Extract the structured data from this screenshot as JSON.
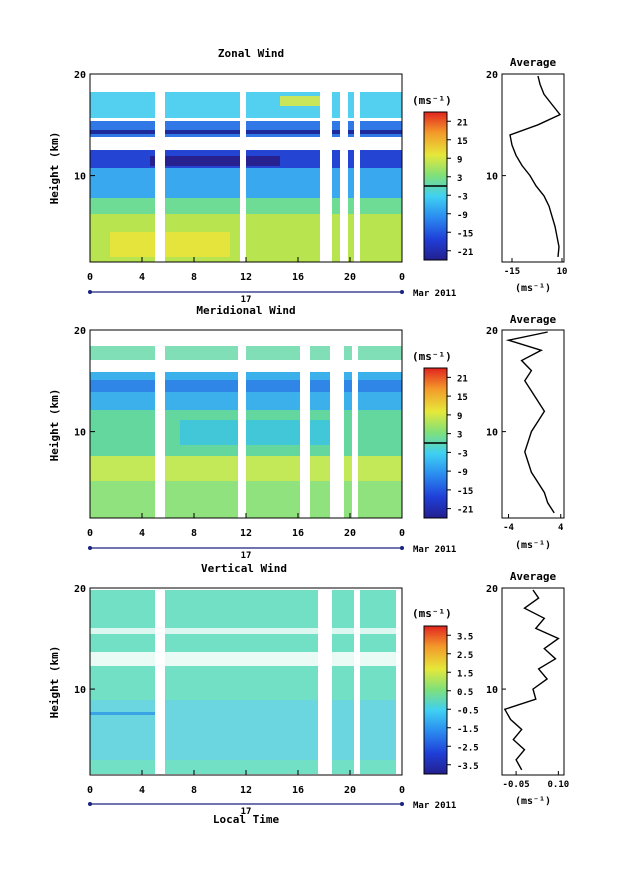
{
  "figure": {
    "xlabel": "Local Time",
    "date_label": "17",
    "month_label": "Mar 2011"
  },
  "chart_data": [
    {
      "type": "heatmap",
      "title": "Zonal Wind",
      "ylabel": "Height (km)",
      "xlabel": "Local Time",
      "unit": "(ms⁻¹)",
      "x_ticks": [
        "0",
        "4",
        "8",
        "12",
        "16",
        "20",
        "0"
      ],
      "y_ticks": [
        "10",
        "20"
      ],
      "xlim": [
        0,
        24
      ],
      "ylim": [
        1.5,
        20
      ],
      "colorbar_ticks": [
        "21",
        "15",
        "9",
        "3",
        "-3",
        "-9",
        "-15",
        "-21"
      ],
      "colorbar_range": [
        -24,
        24
      ],
      "profile": {
        "title": "Average",
        "xlabel": "(ms⁻¹)",
        "x_ticks": [
          "-15",
          "10"
        ],
        "xlim": [
          -20,
          11
        ],
        "heights": [
          2,
          3,
          4,
          5,
          6,
          7,
          8,
          9,
          10,
          11,
          12,
          13,
          14,
          15,
          16,
          17,
          18,
          19,
          19.8
        ],
        "values": [
          8,
          8.5,
          7.5,
          6.5,
          5,
          3.5,
          1,
          -3,
          -6,
          -10,
          -13,
          -15,
          -16,
          -2,
          9,
          5,
          1,
          -1,
          -2
        ]
      }
    },
    {
      "type": "heatmap",
      "title": "Meridional Wind",
      "ylabel": "Height (km)",
      "xlabel": "Local Time",
      "unit": "(ms⁻¹)",
      "x_ticks": [
        "0",
        "4",
        "8",
        "12",
        "16",
        "20",
        "0"
      ],
      "y_ticks": [
        "10",
        "20"
      ],
      "xlim": [
        0,
        24
      ],
      "ylim": [
        1.5,
        20
      ],
      "colorbar_ticks": [
        "21",
        "15",
        "9",
        "3",
        "-3",
        "-9",
        "-15",
        "-21"
      ],
      "colorbar_range": [
        -24,
        24
      ],
      "profile": {
        "title": "Average",
        "xlabel": "(ms⁻¹)",
        "x_ticks": [
          "-4",
          "4"
        ],
        "xlim": [
          -5,
          4.5
        ],
        "heights": [
          2,
          3,
          4,
          5,
          6,
          7,
          8,
          9,
          10,
          11,
          12,
          13,
          14,
          15,
          16,
          17,
          18,
          19,
          19.8
        ],
        "values": [
          3,
          2,
          1.5,
          0.5,
          -0.5,
          -1,
          -1.5,
          -1,
          -0.5,
          0.5,
          1.5,
          0.5,
          -0.5,
          -1.5,
          -0.5,
          -2,
          1,
          -4,
          2
        ]
      }
    },
    {
      "type": "heatmap",
      "title": "Vertical Wind",
      "ylabel": "Height (km)",
      "xlabel": "Local Time",
      "unit": "(ms⁻¹)",
      "x_ticks": [
        "0",
        "4",
        "8",
        "12",
        "16",
        "20",
        "0"
      ],
      "y_ticks": [
        "10",
        "20"
      ],
      "xlim": [
        0,
        24
      ],
      "ylim": [
        1.5,
        20
      ],
      "colorbar_ticks": [
        "3.5",
        "2.5",
        "1.5",
        "0.5",
        "-0.5",
        "-1.5",
        "-2.5",
        "-3.5"
      ],
      "colorbar_range": [
        -4,
        4
      ],
      "profile": {
        "title": "Average",
        "xlabel": "(ms⁻¹)",
        "x_ticks": [
          "-0.05",
          "0.10"
        ],
        "xlim": [
          -0.1,
          0.12
        ],
        "heights": [
          2,
          3,
          4,
          5,
          6,
          7,
          8,
          9,
          10,
          11,
          12,
          13,
          14,
          15,
          16,
          17,
          18,
          19,
          19.8
        ],
        "values": [
          -0.03,
          -0.05,
          -0.02,
          -0.06,
          -0.03,
          -0.07,
          -0.09,
          0.02,
          0.01,
          0.06,
          0.03,
          0.09,
          0.05,
          0.1,
          0.02,
          0.05,
          -0.02,
          0.03,
          0.01
        ]
      }
    }
  ]
}
